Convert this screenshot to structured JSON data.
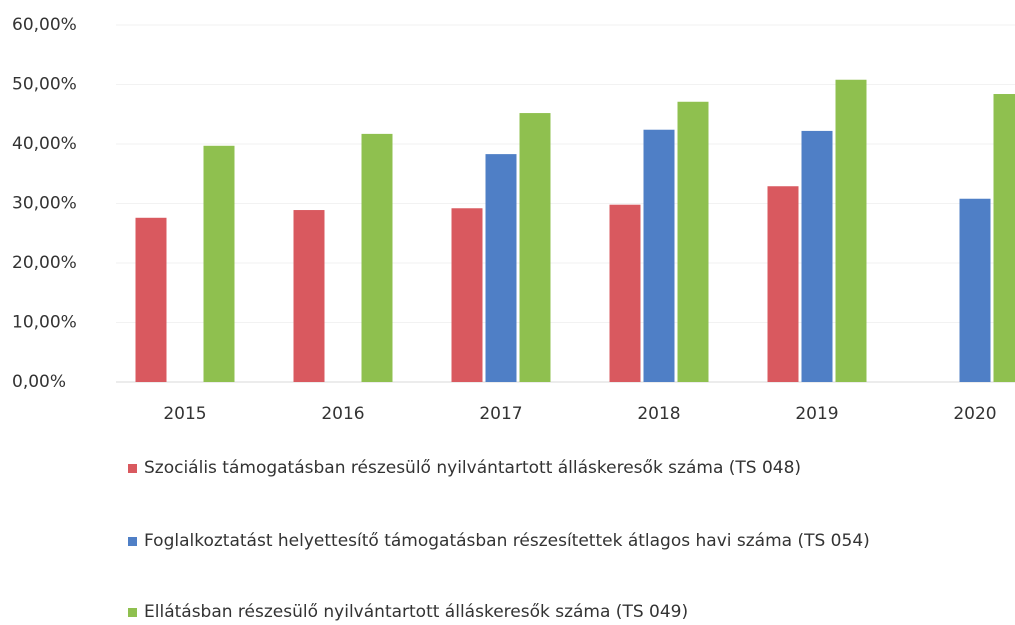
{
  "chart_data": {
    "type": "bar",
    "categories": [
      "2015",
      "2016",
      "2017",
      "2018",
      "2019",
      "2020"
    ],
    "series": [
      {
        "name": "Szociális támogatásban részesülő nyilvántartott álláskeresők száma (TS 048)",
        "color": "#d9595f",
        "values": [
          27.6,
          28.9,
          29.2,
          29.8,
          32.9,
          null
        ]
      },
      {
        "name": "Foglalkoztatást helyettesítő támogatásban részesítettek átlagos havi száma (TS 054)",
        "color": "#4f7fc6",
        "values": [
          null,
          null,
          38.3,
          42.4,
          42.2,
          30.8
        ]
      },
      {
        "name": "Ellátásban részesülő nyilvántartott álláskeresők száma (TS 049)",
        "color": "#8fc04f",
        "values": [
          39.7,
          41.7,
          45.2,
          47.1,
          50.8,
          48.4
        ]
      }
    ],
    "ylim": [
      0,
      60
    ],
    "yticks": [
      {
        "value": 0,
        "label": "0,00%"
      },
      {
        "value": 10,
        "label": "10,00%"
      },
      {
        "value": 20,
        "label": "20,00%"
      },
      {
        "value": 30,
        "label": "30,00%"
      },
      {
        "value": 40,
        "label": "40,00%"
      },
      {
        "value": 50,
        "label": "50,00%"
      },
      {
        "value": 60,
        "label": "60,00%"
      }
    ],
    "grid": true
  }
}
